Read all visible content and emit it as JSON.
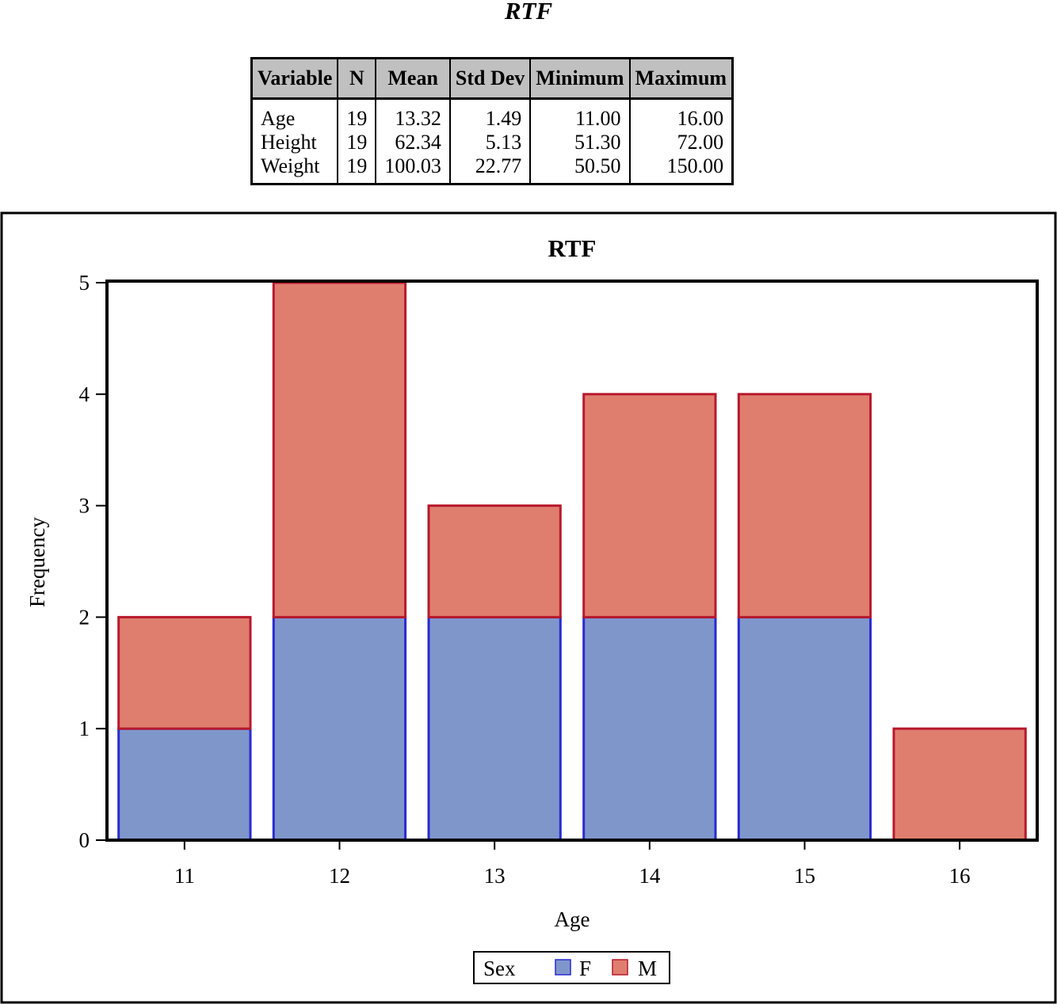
{
  "document": {
    "title": "RTF"
  },
  "summary_table": {
    "headers": [
      "Variable",
      "N",
      "Mean",
      "Std Dev",
      "Minimum",
      "Maximum"
    ],
    "rows": [
      [
        "Age",
        "19",
        "13.32",
        "1.49",
        "11.00",
        "16.00"
      ],
      [
        "Height",
        "19",
        "62.34",
        "5.13",
        "51.30",
        "72.00"
      ],
      [
        "Weight",
        "19",
        "100.03",
        "22.77",
        "50.50",
        "150.00"
      ]
    ]
  },
  "chart_data": {
    "type": "bar",
    "stacked": true,
    "title": "RTF",
    "xlabel": "Age",
    "ylabel": "Frequency",
    "categories": [
      "11",
      "12",
      "13",
      "14",
      "15",
      "16"
    ],
    "series": [
      {
        "name": "F",
        "values": [
          1,
          2,
          2,
          2,
          2,
          0
        ],
        "fill": "#7f96cb",
        "stroke": "#2a2ad0"
      },
      {
        "name": "M",
        "values": [
          1,
          3,
          1,
          2,
          2,
          1
        ],
        "fill": "#df7e6f",
        "stroke": "#b8192c"
      }
    ],
    "yticks": [
      0,
      1,
      2,
      3,
      4,
      5
    ],
    "ylim": [
      0,
      5
    ],
    "grid": false,
    "legend": {
      "title": "Sex",
      "placement": "bottom-center"
    }
  }
}
